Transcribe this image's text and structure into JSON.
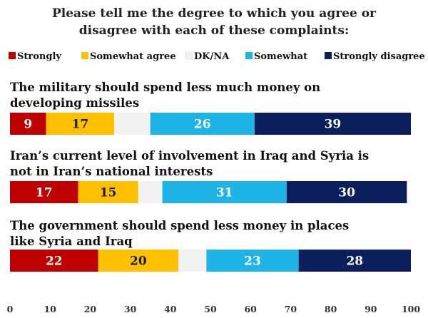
{
  "chart_data": {
    "type": "bar",
    "orientation": "horizontal",
    "stacked": true,
    "title": "Please tell me the degree to which you agree or disagree with each of these complaints:",
    "legend_position": "top",
    "legend": [
      {
        "name": "Strongly",
        "color": "#C00000"
      },
      {
        "name": "Somewhat agree",
        "color": "#FFC000"
      },
      {
        "name": "DK/NA",
        "color": "#F2F2F2"
      },
      {
        "name": "Somewhat",
        "color": "#1FB4E8"
      },
      {
        "name": "Strongly disagree",
        "color": "#0B1F5C"
      }
    ],
    "categories": [
      "The military should spend less much money on developing missiles",
      "Iran’s current level of involvement in Iraq and Syria is not in Iran’s national interests",
      "The government should spend less money in places like Syria and Iraq"
    ],
    "series": [
      {
        "name": "Strongly",
        "values": [
          9,
          17,
          22
        ]
      },
      {
        "name": "Somewhat agree",
        "values": [
          17,
          15,
          20
        ]
      },
      {
        "name": "DK/NA",
        "values": [
          9,
          6,
          7
        ]
      },
      {
        "name": "Somewhat",
        "values": [
          26,
          31,
          23
        ]
      },
      {
        "name": "Strongly disagree",
        "values": [
          39,
          30,
          28
        ]
      }
    ],
    "xlim": [
      0,
      100
    ],
    "xticks": [
      "0",
      "10",
      "20",
      "30",
      "40",
      "50",
      "60",
      "70",
      "80",
      "90",
      "100"
    ],
    "grid": false
  }
}
